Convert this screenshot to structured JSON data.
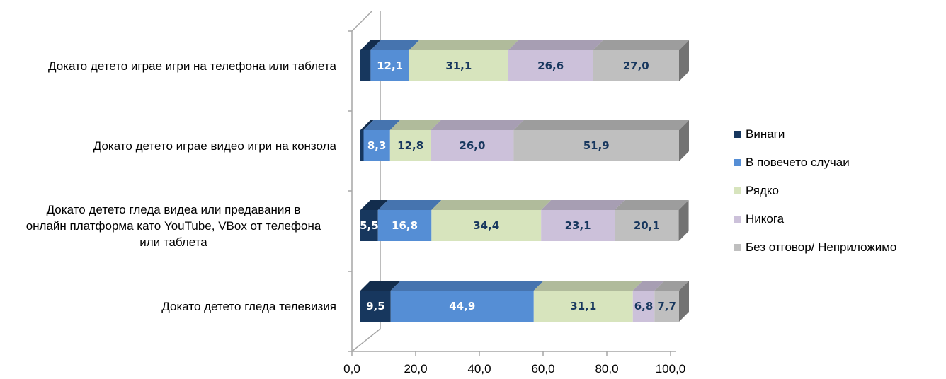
{
  "chart_data": {
    "type": "bar",
    "orientation": "horizontal",
    "stacked": true,
    "three_d": true,
    "xlim": [
      0,
      100
    ],
    "x_ticks": [
      "0,0",
      "20,0",
      "40,0",
      "60,0",
      "80,0",
      "100,0"
    ],
    "categories": [
      [
        "Докато детето играе игри на телефона или таблета"
      ],
      [
        "Докато детето играе видео игри на конзола"
      ],
      [
        "Докато детето гледа видеа или предавания в",
        "онлайн платформа като YouTube, VBox от телефона",
        "или таблета"
      ],
      [
        "Докато детето гледа телевизия"
      ]
    ],
    "series": [
      {
        "name": "Винаги",
        "color": "#17375e",
        "label_color": "#ffffff",
        "values": [
          3.2,
          1.0,
          5.5,
          9.5
        ],
        "labels": [
          "",
          "",
          "5,5",
          "9,5"
        ]
      },
      {
        "name": "В повечето случаи",
        "color": "#558ed5",
        "label_color": "#ffffff",
        "values": [
          12.1,
          8.3,
          16.8,
          44.9
        ],
        "labels": [
          "12,1",
          "8,3",
          "16,8",
          "44,9"
        ]
      },
      {
        "name": "Рядко",
        "color": "#d7e4bd",
        "label_color": "#17375e",
        "values": [
          31.1,
          12.8,
          34.4,
          31.1
        ],
        "labels": [
          "31,1",
          "12,8",
          "34,4",
          "31,1"
        ]
      },
      {
        "name": "Никога",
        "color": "#ccc1da",
        "label_color": "#17375e",
        "values": [
          26.6,
          26.0,
          23.1,
          6.8
        ],
        "labels": [
          "26,6",
          "26,0",
          "23,1",
          "6,8"
        ]
      },
      {
        "name": "Без отговор/ Неприложимо",
        "color": "#bfbfbf",
        "label_color": "#17375e",
        "values": [
          27.0,
          51.9,
          20.1,
          7.7
        ],
        "labels": [
          "27,0",
          "51,9",
          "20,1",
          "7,7"
        ]
      }
    ],
    "legend_position": "right",
    "grid": false
  }
}
